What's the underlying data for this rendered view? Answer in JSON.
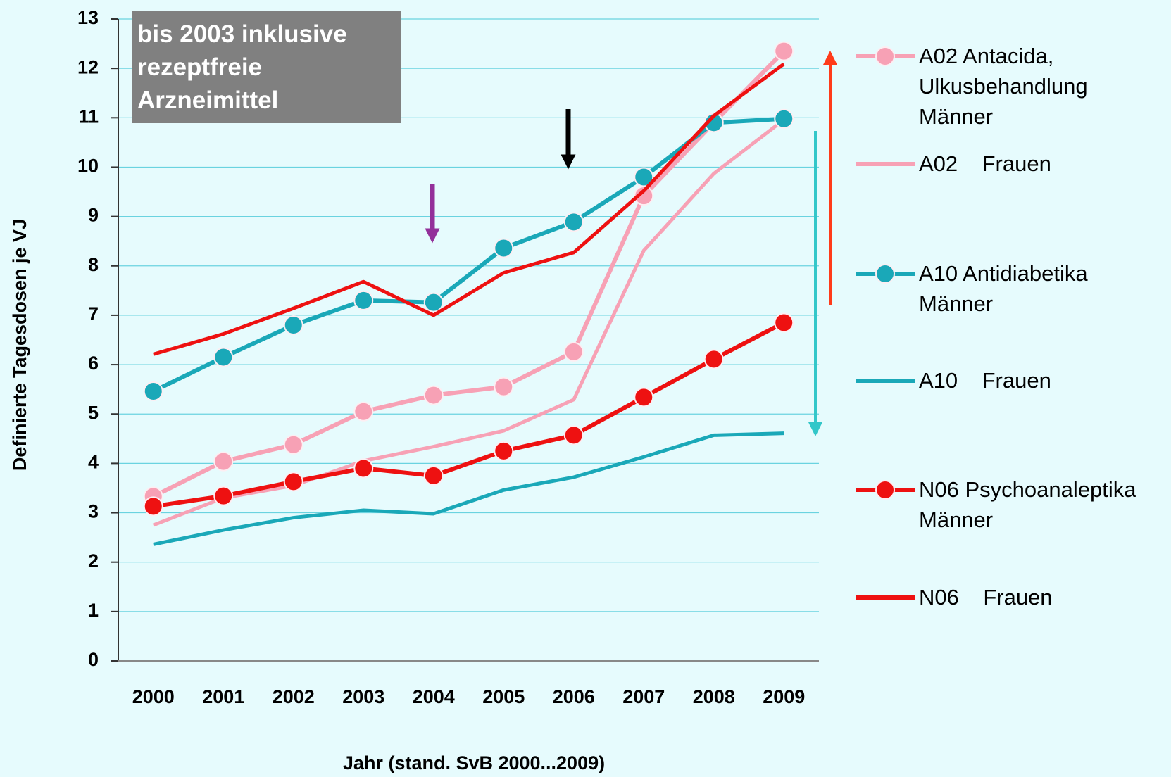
{
  "chart_data": {
    "type": "line",
    "annotation": "bis 2003 inklusive\nrezeptfreie\nArzneimittel",
    "xlabel": "Jahr (stand. SvB 2000...2009)",
    "ylabel": "Definierte Tagesdosen je VJ",
    "categories": [
      "2000",
      "2001",
      "2002",
      "2003",
      "2004",
      "2005",
      "2006",
      "2007",
      "2008",
      "2009"
    ],
    "ylim": [
      0,
      13
    ],
    "yticks": [
      0,
      1,
      2,
      3,
      4,
      5,
      6,
      7,
      8,
      9,
      10,
      11,
      12,
      13
    ],
    "grid": true,
    "legend": "right",
    "series": [
      {
        "name": "A02 Antacida,\nUlkusbehandlung\nMänner",
        "color": "#f7a1b5",
        "marker": true,
        "values": [
          3.33,
          4.04,
          4.38,
          5.05,
          5.38,
          5.55,
          6.26,
          9.42,
          10.9,
          12.35
        ]
      },
      {
        "name": "A02    Frauen",
        "color": "#f7a1b5",
        "marker": false,
        "values": [
          2.75,
          3.3,
          3.55,
          4.05,
          4.34,
          4.66,
          5.29,
          8.31,
          9.87,
          10.96
        ]
      },
      {
        "name": "A10 Antidiabetika\nMänner",
        "color": "#1aa8b8",
        "marker": true,
        "values": [
          5.46,
          6.15,
          6.8,
          7.3,
          7.26,
          8.36,
          8.89,
          9.8,
          10.9,
          10.98
        ]
      },
      {
        "name": "A10    Frauen",
        "color": "#1aa8b8",
        "marker": false,
        "values": [
          2.36,
          2.65,
          2.9,
          3.05,
          2.98,
          3.46,
          3.72,
          4.13,
          4.57,
          4.61
        ]
      },
      {
        "name": "N06 Psychoanaleptika\nMänner",
        "color": "#ee1111",
        "marker": true,
        "values": [
          3.13,
          3.34,
          3.63,
          3.9,
          3.75,
          4.25,
          4.57,
          5.34,
          6.11,
          6.85
        ]
      },
      {
        "name": "N06    Frauen",
        "color": "#ee1111",
        "marker": false,
        "values": [
          6.21,
          6.62,
          7.14,
          7.68,
          7.0,
          7.86,
          8.27,
          9.52,
          11.04,
          12.09
        ]
      }
    ]
  }
}
